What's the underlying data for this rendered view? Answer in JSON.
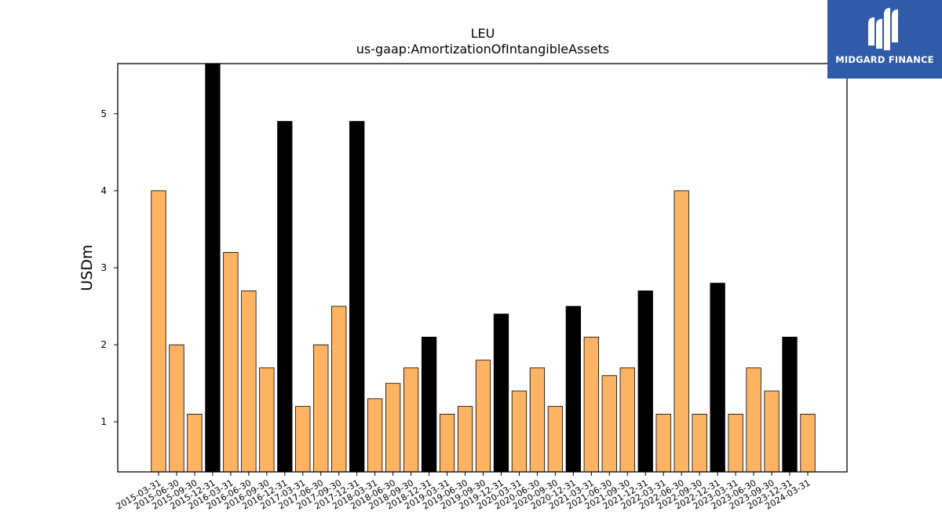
{
  "chart_data": {
    "type": "bar",
    "title": "LEU",
    "subtitle": "us-gaap:AmortizationOfIntangibleAssets",
    "xlabel": "",
    "ylabel": "USDm",
    "ylim": [
      0.35,
      5.65
    ],
    "yticks": [
      "1",
      "2",
      "3",
      "4",
      "5"
    ],
    "grid": false,
    "categories": [
      "2015-03-31",
      "2015-06-30",
      "2015-09-30",
      "2015-12-31",
      "2016-03-31",
      "2016-06-30",
      "2016-09-30",
      "2016-12-31",
      "2017-03-31",
      "2017-06-30",
      "2017-09-30",
      "2017-12-31",
      "2018-03-31",
      "2018-06-30",
      "2018-09-30",
      "2018-12-31",
      "2019-03-31",
      "2019-06-30",
      "2019-09-30",
      "2019-12-31",
      "2020-03-31",
      "2020-06-30",
      "2020-09-30",
      "2020-12-31",
      "2021-03-31",
      "2021-06-30",
      "2021-09-30",
      "2021-12-31",
      "2022-03-31",
      "2022-06-30",
      "2022-09-30",
      "2022-12-31",
      "2023-03-31",
      "2023-06-30",
      "2023-09-30",
      "2023-12-31",
      "2024-03-31"
    ],
    "values": [
      4.0,
      2.0,
      1.1,
      5.7,
      3.2,
      2.7,
      1.7,
      4.9,
      1.2,
      2.0,
      2.5,
      4.9,
      1.3,
      1.5,
      1.7,
      2.1,
      1.1,
      1.2,
      1.8,
      2.4,
      1.4,
      1.7,
      1.2,
      2.5,
      2.1,
      1.6,
      1.7,
      2.7,
      1.1,
      4.0,
      1.1,
      2.8,
      1.1,
      1.7,
      1.4,
      2.1,
      1.1
    ],
    "colors": {
      "quarter": "#fdb462",
      "year_end": "#000000",
      "edge": "#000000"
    }
  },
  "logo": {
    "text": "MIDGARD FINANCE",
    "bg": "#2f5ba8"
  }
}
